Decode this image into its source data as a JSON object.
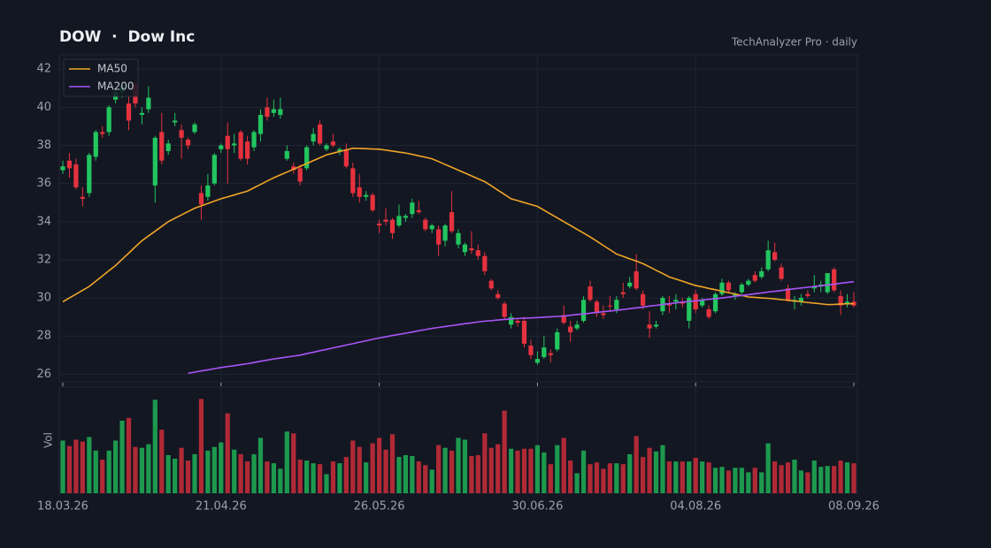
{
  "chart_data": {
    "type": "candlestick",
    "title": "DOW  ·  Dow Inc",
    "subtitle": "TechAnalyzer Pro · daily",
    "volume_label": "Vol",
    "categories": [
      "18.03.26",
      null,
      null,
      null,
      null,
      null,
      null,
      null,
      null,
      null,
      null,
      null,
      null,
      null,
      null,
      null,
      null,
      null,
      null,
      null,
      null,
      null,
      null,
      null,
      "21.04.26",
      null,
      null,
      null,
      null,
      null,
      null,
      null,
      null,
      null,
      null,
      null,
      null,
      null,
      null,
      null,
      null,
      null,
      null,
      null,
      null,
      null,
      null,
      null,
      "26.05.26",
      null,
      null,
      null,
      null,
      null,
      null,
      null,
      null,
      null,
      null,
      null,
      null,
      null,
      null,
      null,
      null,
      null,
      null,
      null,
      null,
      null,
      null,
      null,
      "30.06.26",
      null,
      null,
      null,
      null,
      null,
      null,
      null,
      null,
      null,
      null,
      null,
      null,
      null,
      null,
      null,
      null,
      null,
      null,
      null,
      null,
      null,
      null,
      null,
      "04.08.26",
      null,
      null,
      null,
      null,
      null,
      null,
      null,
      null,
      null,
      null,
      null,
      null,
      null,
      null,
      null,
      null,
      null,
      null,
      null,
      null,
      null,
      null,
      null,
      "08.09.26"
    ],
    "open": [
      36.7,
      37.2,
      37.0,
      35.3,
      35.5,
      37.4,
      38.7,
      38.7,
      40.4,
      40.8,
      40.2,
      41.2,
      39.6,
      39.9,
      35.9,
      38.7,
      37.7,
      39.2,
      38.8,
      38.3,
      38.7,
      35.5,
      35.3,
      36.0,
      37.8,
      38.5,
      38.0,
      38.7,
      38.2,
      37.9,
      38.6,
      40.0,
      39.7,
      39.6,
      37.3,
      36.9,
      36.8,
      36.8,
      38.2,
      39.1,
      37.8,
      38.2,
      37.7,
      37.8,
      36.8,
      35.8,
      35.3,
      35.4,
      33.9,
      34.1,
      34.1,
      33.8,
      34.2,
      34.4,
      34.6,
      34.1,
      33.6,
      33.6,
      33.0,
      34.5,
      32.8,
      32.4,
      32.6,
      32.5,
      32.2,
      30.9,
      30.2,
      29.7,
      28.6,
      28.8,
      28.8,
      27.5,
      26.6,
      26.9,
      27.1,
      27.3,
      29.1,
      28.5,
      28.4,
      28.8,
      30.6,
      29.8,
      29.2,
      29.6,
      29.4,
      30.3,
      30.6,
      31.4,
      30.2,
      28.6,
      28.5,
      29.3,
      29.7,
      29.8,
      29.8,
      28.8,
      30.2,
      29.6,
      29.4,
      29.3,
      30.2,
      30.8,
      30.1,
      30.3,
      30.7,
      31.2,
      31.1,
      31.5,
      32.4,
      31.6,
      30.5,
      29.8,
      29.8,
      30.2,
      30.5,
      30.6,
      30.3,
      31.5,
      30.1,
      29.7,
      29.8
    ],
    "high": [
      37.2,
      37.6,
      37.3,
      35.8,
      37.6,
      38.8,
      39.0,
      40.1,
      41.0,
      41.3,
      40.6,
      41.4,
      40.0,
      41.1,
      38.5,
      39.7,
      38.3,
      39.7,
      39.1,
      38.4,
      39.2,
      35.9,
      36.5,
      37.6,
      38.1,
      39.2,
      38.6,
      38.8,
      38.5,
      38.8,
      39.9,
      40.5,
      40.4,
      40.5,
      38.0,
      37.1,
      37.0,
      38.0,
      38.9,
      39.3,
      38.1,
      38.6,
      37.9,
      38.1,
      37.1,
      36.5,
      35.6,
      35.5,
      34.1,
      34.7,
      34.2,
      34.9,
      34.4,
      35.2,
      35.1,
      34.2,
      33.9,
      33.8,
      33.9,
      35.6,
      33.6,
      32.9,
      33.5,
      32.8,
      32.4,
      31.0,
      30.4,
      29.8,
      29.2,
      28.9,
      29.0,
      27.8,
      27.2,
      28.0,
      27.3,
      28.4,
      29.6,
      28.8,
      28.8,
      30.1,
      30.9,
      29.9,
      29.6,
      30.1,
      30.1,
      30.8,
      31.1,
      32.3,
      30.4,
      29.3,
      28.8,
      30.1,
      30.1,
      30.2,
      30.0,
      30.1,
      30.4,
      30.0,
      29.6,
      30.3,
      31.0,
      30.9,
      30.3,
      30.8,
      31.0,
      31.4,
      31.6,
      33.0,
      32.9,
      31.8,
      30.7,
      30.1,
      30.2,
      30.4,
      31.2,
      30.9,
      31.3,
      31.6,
      30.4,
      30.2,
      30.3
    ],
    "low": [
      36.5,
      36.3,
      35.7,
      34.8,
      35.3,
      37.2,
      38.4,
      38.5,
      40.2,
      40.5,
      38.8,
      40.0,
      39.1,
      39.7,
      35.0,
      37.0,
      37.5,
      39.0,
      37.3,
      37.8,
      38.6,
      34.1,
      35.1,
      35.9,
      37.6,
      36.0,
      37.6,
      37.2,
      37.0,
      37.7,
      38.2,
      39.3,
      39.5,
      39.4,
      37.2,
      36.5,
      35.9,
      36.7,
      38.0,
      38.0,
      37.7,
      37.9,
      37.5,
      36.8,
      35.3,
      35.0,
      35.1,
      34.5,
      33.4,
      33.8,
      33.1,
      33.7,
      34.0,
      34.2,
      34.4,
      33.5,
      33.4,
      32.2,
      32.7,
      33.4,
      32.6,
      32.2,
      32.3,
      32.0,
      31.2,
      30.4,
      29.9,
      28.9,
      28.4,
      28.5,
      27.4,
      26.8,
      26.5,
      26.8,
      26.6,
      27.2,
      28.6,
      27.7,
      28.3,
      28.7,
      29.8,
      29.0,
      28.9,
      29.3,
      29.2,
      30.0,
      30.5,
      30.4,
      29.4,
      27.9,
      28.4,
      29.1,
      29.2,
      29.4,
      29.5,
      28.4,
      29.2,
      29.5,
      28.9,
      29.2,
      30.1,
      30.3,
      29.9,
      30.2,
      30.6,
      30.8,
      31.0,
      31.4,
      31.9,
      30.9,
      29.8,
      29.4,
      29.6,
      30.0,
      30.3,
      30.3,
      30.2,
      30.3,
      29.1,
      29.5,
      29.5
    ],
    "close": [
      36.9,
      36.8,
      35.8,
      35.2,
      37.5,
      38.7,
      38.6,
      40.0,
      40.8,
      41.1,
      39.3,
      40.2,
      39.7,
      40.5,
      38.4,
      37.2,
      38.1,
      39.3,
      38.4,
      38.0,
      39.1,
      34.9,
      35.9,
      37.5,
      38.0,
      37.8,
      38.1,
      37.3,
      37.3,
      38.7,
      39.6,
      39.5,
      39.9,
      39.9,
      37.7,
      36.7,
      36.1,
      37.9,
      38.6,
      38.1,
      38.0,
      38.0,
      37.8,
      36.9,
      35.5,
      35.3,
      35.4,
      34.6,
      33.8,
      34.0,
      33.4,
      34.3,
      34.3,
      35.0,
      34.5,
      33.6,
      33.8,
      32.8,
      33.8,
      33.5,
      33.4,
      32.8,
      32.5,
      32.2,
      31.4,
      30.5,
      30.0,
      29.0,
      29.0,
      28.7,
      27.6,
      27.0,
      26.8,
      27.4,
      27.0,
      28.2,
      28.7,
      28.2,
      28.6,
      29.9,
      29.9,
      29.2,
      29.1,
      29.6,
      29.9,
      30.2,
      30.8,
      30.5,
      29.6,
      28.4,
      28.6,
      30.0,
      29.6,
      29.9,
      29.7,
      30.0,
      29.4,
      29.9,
      29.0,
      30.2,
      30.8,
      30.4,
      30.2,
      30.7,
      30.9,
      30.9,
      31.4,
      32.5,
      32.0,
      31.0,
      29.9,
      29.9,
      30.0,
      30.1,
      30.6,
      30.7,
      31.3,
      30.4,
      29.6,
      29.8,
      29.6
    ],
    "volume": [
      58,
      52,
      59,
      57,
      62,
      47,
      37,
      47,
      58,
      80,
      83,
      51,
      50,
      54,
      103,
      70,
      42,
      38,
      50,
      36,
      43,
      104,
      47,
      51,
      56,
      88,
      48,
      43,
      35,
      43,
      61,
      35,
      33,
      27,
      68,
      66,
      37,
      36,
      33,
      32,
      21,
      35,
      33,
      40,
      58,
      51,
      34,
      55,
      61,
      48,
      65,
      40,
      42,
      41,
      35,
      31,
      26,
      53,
      50,
      47,
      61,
      59,
      41,
      42,
      66,
      50,
      54,
      91,
      49,
      47,
      49,
      49,
      53,
      45,
      32,
      53,
      61,
      36,
      22,
      47,
      32,
      34,
      27,
      33,
      33,
      32,
      43,
      63,
      40,
      50,
      46,
      53,
      35,
      35,
      35,
      35,
      39,
      35,
      34,
      28,
      29,
      25,
      28,
      28,
      23,
      28,
      23,
      55,
      35,
      31,
      34,
      37,
      25,
      23,
      36,
      29,
      30,
      30,
      36,
      34,
      33
    ],
    "series": [
      {
        "name": "MA50",
        "color": "#f0a526",
        "values": [
          29.8,
          30.0,
          30.2,
          30.4,
          30.6,
          30.88,
          31.15,
          31.43,
          31.7,
          32.03,
          32.35,
          32.68,
          33.0,
          33.25,
          33.5,
          33.75,
          34.0,
          34.18,
          34.35,
          34.53,
          34.7,
          34.83,
          34.95,
          35.08,
          35.2,
          35.3,
          35.4,
          35.5,
          35.6,
          35.78,
          35.95,
          36.13,
          36.3,
          36.45,
          36.6,
          36.75,
          36.9,
          37.05,
          37.2,
          37.35,
          37.5,
          37.59,
          37.68,
          37.76,
          37.85,
          37.84,
          37.83,
          37.81,
          37.8,
          37.75,
          37.7,
          37.65,
          37.6,
          37.53,
          37.45,
          37.38,
          37.3,
          37.15,
          37.0,
          36.85,
          36.7,
          36.55,
          36.4,
          36.25,
          36.1,
          35.88,
          35.65,
          35.43,
          35.2,
          35.1,
          35.0,
          34.9,
          34.8,
          34.6,
          34.4,
          34.2,
          34.0,
          33.8,
          33.6,
          33.4,
          33.2,
          32.98,
          32.75,
          32.53,
          32.3,
          32.18,
          32.05,
          31.93,
          31.8,
          31.63,
          31.45,
          31.28,
          31.1,
          30.99,
          30.88,
          30.76,
          30.65,
          30.58,
          30.5,
          30.43,
          30.35,
          30.28,
          30.2,
          30.13,
          30.05,
          30.03,
          30.0,
          29.98,
          29.95,
          29.91,
          29.88,
          29.84,
          29.8,
          29.76,
          29.73,
          29.69,
          29.65,
          29.66,
          29.68,
          29.69,
          29.7
        ]
      },
      {
        "name": "MA200",
        "color": "#a855f7",
        "values": [
          null,
          null,
          null,
          null,
          null,
          null,
          null,
          null,
          null,
          null,
          null,
          null,
          null,
          null,
          null,
          null,
          null,
          null,
          null,
          26.05,
          26.11,
          26.17,
          26.23,
          26.29,
          26.35,
          26.4,
          26.45,
          26.5,
          26.55,
          26.61,
          26.68,
          26.74,
          26.8,
          26.85,
          26.9,
          26.95,
          27.0,
          27.08,
          27.15,
          27.23,
          27.3,
          27.38,
          27.45,
          27.53,
          27.6,
          27.68,
          27.75,
          27.83,
          27.9,
          27.96,
          28.03,
          28.09,
          28.15,
          28.21,
          28.28,
          28.34,
          28.4,
          28.45,
          28.5,
          28.55,
          28.6,
          28.65,
          28.69,
          28.74,
          28.78,
          28.81,
          28.84,
          28.87,
          28.9,
          28.92,
          28.94,
          28.95,
          28.97,
          28.99,
          29.01,
          29.03,
          29.05,
          29.09,
          29.13,
          29.16,
          29.2,
          29.24,
          29.28,
          29.31,
          29.35,
          29.39,
          29.44,
          29.48,
          29.52,
          29.57,
          29.61,
          29.66,
          29.7,
          29.74,
          29.78,
          29.81,
          29.85,
          29.89,
          29.93,
          29.96,
          30.0,
          30.04,
          30.09,
          30.13,
          30.17,
          30.22,
          30.26,
          30.31,
          30.35,
          30.39,
          30.44,
          30.48,
          30.52,
          30.56,
          30.6,
          30.64,
          30.68,
          30.72,
          30.77,
          30.81,
          30.85
        ]
      }
    ],
    "up_color": "#22c55e",
    "down_color": "#e5323e",
    "ylim": [
      25.6,
      42.75
    ],
    "yticks": [
      26,
      28,
      30,
      32,
      34,
      36,
      38,
      40,
      42
    ],
    "vlim": [
      0,
      115
    ],
    "grid": true,
    "legend": "upper left"
  }
}
